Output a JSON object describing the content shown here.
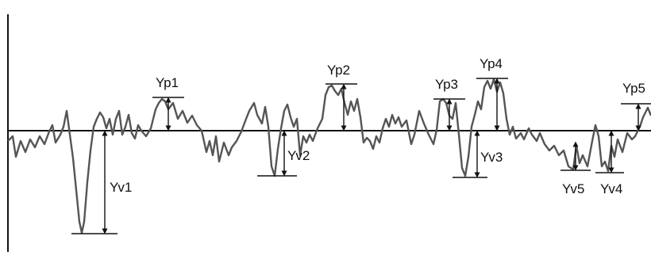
{
  "diagram": {
    "peak_labels": [
      "Yp1",
      "Yp2",
      "Yp3",
      "Yp4",
      "Yp5"
    ],
    "valley_labels": [
      "Yv1",
      "Yv2",
      "Yv3",
      "Yv4",
      "Yv5"
    ]
  }
}
